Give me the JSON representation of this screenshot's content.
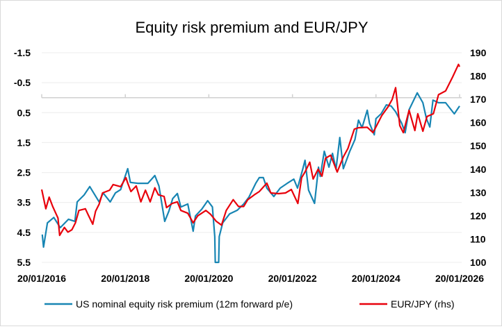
{
  "chart_data": {
    "type": "line",
    "title": "Equity risk premium and EUR/JPY",
    "colors": {
      "erp": "#1785B3",
      "eurjpy": "#E8000B"
    },
    "x_axis": {
      "type": "date",
      "range": [
        "2016-01-20",
        "2026-01-20"
      ],
      "tick_values": [
        "2016-01-20",
        "2018-01-20",
        "2020-01-20",
        "2022-01-20",
        "2024-01-20",
        "2026-01-20"
      ],
      "tick_labels": [
        "20/01/2016",
        "20/01/2018",
        "20/01/2020",
        "20/01/2022",
        "20/01/2024",
        "20/01/2026"
      ],
      "crosses_left_axis_at": 0
    },
    "y_left": {
      "inverted": true,
      "range": [
        -1.5,
        5.5
      ],
      "tick_labels": [
        "-1.5",
        "-0.5",
        "0.5",
        "1.5",
        "2.5",
        "3.5",
        "4.5",
        "5.5"
      ]
    },
    "y_right": {
      "range": [
        100,
        190
      ],
      "tick_labels": [
        "100",
        "110",
        "120",
        "130",
        "140",
        "150",
        "160",
        "170",
        "180",
        "190"
      ]
    },
    "grid": true,
    "legend_position": "bottom",
    "series": [
      {
        "name": "US nominal equity risk premium (12m forward p/e)",
        "axis": "left",
        "points": [
          [
            "2016-01-25",
            4.57
          ],
          [
            "2016-02-05",
            4.99
          ],
          [
            "2016-03-10",
            4.18
          ],
          [
            "2016-05-05",
            4.0
          ],
          [
            "2016-06-30",
            4.34
          ],
          [
            "2016-09-10",
            4.06
          ],
          [
            "2016-11-05",
            4.13
          ],
          [
            "2016-11-25",
            3.48
          ],
          [
            "2017-01-25",
            3.25
          ],
          [
            "2017-03-15",
            2.97
          ],
          [
            "2017-06-05",
            3.48
          ],
          [
            "2017-07-10",
            3.18
          ],
          [
            "2017-09-10",
            3.48
          ],
          [
            "2017-10-25",
            3.18
          ],
          [
            "2017-12-10",
            3.07
          ],
          [
            "2018-02-10",
            2.37
          ],
          [
            "2018-03-05",
            2.83
          ],
          [
            "2018-05-10",
            2.86
          ],
          [
            "2018-08-05",
            2.86
          ],
          [
            "2018-10-05",
            2.6
          ],
          [
            "2018-11-10",
            2.95
          ],
          [
            "2018-12-30",
            4.13
          ],
          [
            "2019-02-05",
            3.79
          ],
          [
            "2019-03-10",
            3.37
          ],
          [
            "2019-04-20",
            3.2
          ],
          [
            "2019-05-20",
            3.65
          ],
          [
            "2019-07-20",
            3.55
          ],
          [
            "2019-09-05",
            4.46
          ],
          [
            "2019-09-25",
            3.95
          ],
          [
            "2019-11-20",
            3.72
          ],
          [
            "2020-01-10",
            3.44
          ],
          [
            "2020-02-20",
            3.65
          ],
          [
            "2020-03-12",
            4.64
          ],
          [
            "2020-03-16",
            5.5
          ],
          [
            "2020-04-15",
            5.5
          ],
          [
            "2020-04-20",
            4.64
          ],
          [
            "2020-05-20",
            4.18
          ],
          [
            "2020-07-20",
            3.88
          ],
          [
            "2020-09-25",
            3.76
          ],
          [
            "2020-11-20",
            3.55
          ],
          [
            "2021-01-05",
            3.32
          ],
          [
            "2021-03-05",
            2.86
          ],
          [
            "2021-04-05",
            2.67
          ],
          [
            "2021-05-10",
            2.67
          ],
          [
            "2021-06-10",
            3.02
          ],
          [
            "2021-08-10",
            3.3
          ],
          [
            "2021-10-05",
            3.02
          ],
          [
            "2021-12-05",
            2.86
          ],
          [
            "2022-02-01",
            2.72
          ],
          [
            "2022-03-05",
            3.02
          ],
          [
            "2022-04-20",
            2.39
          ],
          [
            "2022-05-10",
            2.09
          ],
          [
            "2022-06-10",
            3.09
          ],
          [
            "2022-08-01",
            3.53
          ],
          [
            "2022-09-05",
            2.32
          ],
          [
            "2022-09-20",
            2.63
          ],
          [
            "2022-10-25",
            1.79
          ],
          [
            "2022-12-05",
            2.32
          ],
          [
            "2023-01-05",
            1.86
          ],
          [
            "2023-02-05",
            2.39
          ],
          [
            "2023-03-10",
            1.33
          ],
          [
            "2023-04-10",
            2.37
          ],
          [
            "2023-06-05",
            1.79
          ],
          [
            "2023-07-20",
            1.4
          ],
          [
            "2023-08-20",
            0.75
          ],
          [
            "2023-09-20",
            1.0
          ],
          [
            "2023-11-05",
            0.42
          ],
          [
            "2023-11-25",
            0.86
          ],
          [
            "2024-01-05",
            1.24
          ],
          [
            "2024-01-20",
            0.7
          ],
          [
            "2024-03-05",
            0.54
          ],
          [
            "2024-04-20",
            0.24
          ],
          [
            "2024-06-01",
            0.28
          ],
          [
            "2024-07-10",
            0.47
          ],
          [
            "2024-09-01",
            0.86
          ],
          [
            "2024-10-01",
            1.17
          ],
          [
            "2024-11-05",
            0.4
          ],
          [
            "2025-01-15",
            -0.16
          ],
          [
            "2025-03-05",
            0.17
          ],
          [
            "2025-04-05",
            0.7
          ],
          [
            "2025-05-05",
            0.98
          ],
          [
            "2025-06-01",
            0.08
          ],
          [
            "2025-07-20",
            0.17
          ],
          [
            "2025-09-20",
            0.17
          ],
          [
            "2025-12-05",
            0.54
          ],
          [
            "2026-01-20",
            0.28
          ]
        ]
      },
      {
        "name": "EUR/JPY (rhs)",
        "axis": "right",
        "points": [
          [
            "2016-01-20",
            131.3
          ],
          [
            "2016-02-25",
            123
          ],
          [
            "2016-03-25",
            128
          ],
          [
            "2016-04-25",
            124
          ],
          [
            "2016-06-10",
            119
          ],
          [
            "2016-06-25",
            111.6
          ],
          [
            "2016-08-05",
            115
          ],
          [
            "2016-09-05",
            113
          ],
          [
            "2016-10-10",
            114
          ],
          [
            "2016-11-10",
            117
          ],
          [
            "2016-12-10",
            122.3
          ],
          [
            "2017-02-05",
            123
          ],
          [
            "2017-03-05",
            120
          ],
          [
            "2017-04-10",
            116.4
          ],
          [
            "2017-05-05",
            122
          ],
          [
            "2017-06-05",
            125
          ],
          [
            "2017-07-05",
            129.8
          ],
          [
            "2017-09-05",
            131
          ],
          [
            "2017-10-05",
            133.4
          ],
          [
            "2017-12-10",
            132.5
          ],
          [
            "2018-01-25",
            136.4
          ],
          [
            "2018-02-10",
            134
          ],
          [
            "2018-03-10",
            130.4
          ],
          [
            "2018-04-25",
            132.8
          ],
          [
            "2018-06-05",
            126
          ],
          [
            "2018-07-15",
            131
          ],
          [
            "2018-08-25",
            126
          ],
          [
            "2018-10-05",
            132
          ],
          [
            "2018-11-05",
            129
          ],
          [
            "2018-12-25",
            128.3
          ],
          [
            "2019-01-15",
            123.5
          ],
          [
            "2019-03-05",
            125.3
          ],
          [
            "2019-04-20",
            126
          ],
          [
            "2019-05-20",
            122.3
          ],
          [
            "2019-07-20",
            121.1
          ],
          [
            "2019-09-05",
            117
          ],
          [
            "2019-10-15",
            120
          ],
          [
            "2019-12-25",
            122.3
          ],
          [
            "2020-02-05",
            120.6
          ],
          [
            "2020-03-25",
            117.6
          ],
          [
            "2020-05-10",
            116
          ],
          [
            "2020-06-20",
            122.3
          ],
          [
            "2020-08-20",
            126.9
          ],
          [
            "2020-10-05",
            124
          ],
          [
            "2020-11-20",
            124
          ],
          [
            "2020-12-25",
            126.9
          ],
          [
            "2021-02-20",
            129
          ],
          [
            "2021-04-05",
            130.4
          ],
          [
            "2021-06-10",
            134
          ],
          [
            "2021-07-15",
            129.8
          ],
          [
            "2021-09-20",
            129.5
          ],
          [
            "2021-11-20",
            129.8
          ],
          [
            "2022-01-10",
            131.3
          ],
          [
            "2022-03-08",
            125.3
          ],
          [
            "2022-04-10",
            136.4
          ],
          [
            "2022-05-10",
            138.8
          ],
          [
            "2022-06-20",
            143
          ],
          [
            "2022-07-20",
            135.8
          ],
          [
            "2022-09-01",
            140
          ],
          [
            "2022-10-05",
            137
          ],
          [
            "2022-11-05",
            144.7
          ],
          [
            "2022-12-20",
            146
          ],
          [
            "2023-02-15",
            138.8
          ],
          [
            "2023-04-10",
            145.3
          ],
          [
            "2023-05-20",
            148.9
          ],
          [
            "2023-07-15",
            157.2
          ],
          [
            "2023-08-20",
            157.8
          ],
          [
            "2023-11-05",
            158
          ],
          [
            "2023-12-25",
            155.7
          ],
          [
            "2024-03-10",
            163
          ],
          [
            "2024-05-05",
            166.8
          ],
          [
            "2024-06-10",
            170
          ],
          [
            "2024-07-10",
            175
          ],
          [
            "2024-08-15",
            158.7
          ],
          [
            "2024-09-15",
            155.7
          ],
          [
            "2024-11-05",
            165.3
          ],
          [
            "2024-12-25",
            156.6
          ],
          [
            "2025-01-20",
            163.8
          ],
          [
            "2025-03-05",
            156.3
          ],
          [
            "2025-04-10",
            162.6
          ],
          [
            "2025-06-05",
            163.8
          ],
          [
            "2025-07-20",
            172
          ],
          [
            "2025-09-20",
            173.6
          ],
          [
            "2025-11-20",
            179.6
          ],
          [
            "2026-01-10",
            185
          ],
          [
            "2026-01-20",
            184
          ]
        ]
      }
    ]
  }
}
